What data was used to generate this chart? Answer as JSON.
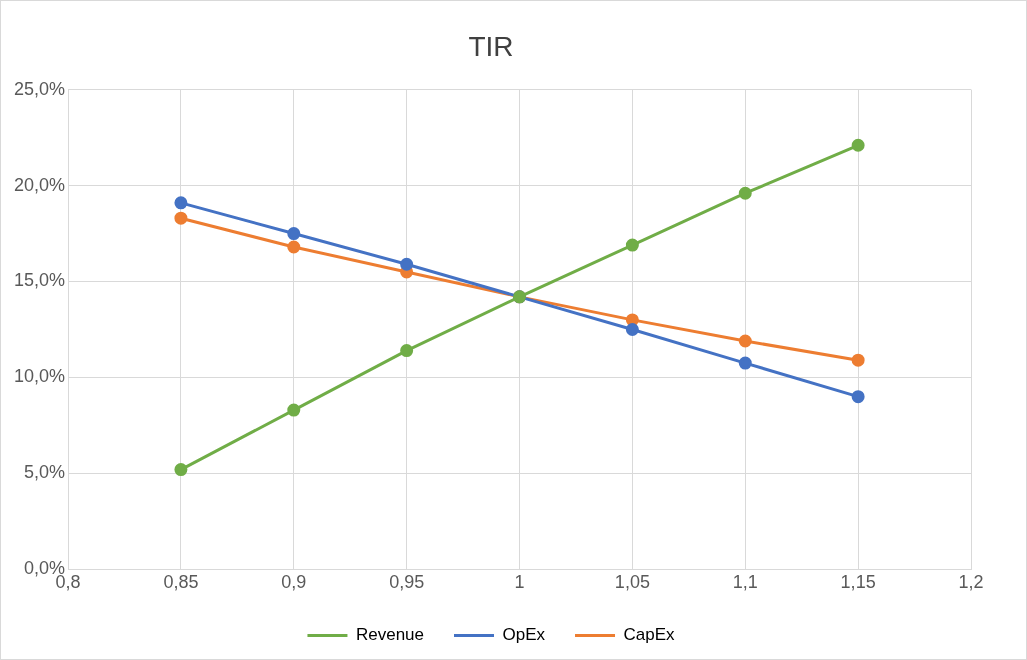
{
  "chart_data": {
    "type": "line",
    "title": "TIR",
    "x": [
      0.85,
      0.9,
      0.95,
      1,
      1.05,
      1.1,
      1.15
    ],
    "series": [
      {
        "name": "Revenue",
        "color": "#70ad47",
        "values": [
          5.2,
          8.3,
          11.4,
          14.2,
          16.9,
          19.6,
          22.1
        ]
      },
      {
        "name": "OpEx",
        "color": "#4472c4",
        "values": [
          19.1,
          17.5,
          15.9,
          14.2,
          12.5,
          10.75,
          9.0
        ]
      },
      {
        "name": "CapEx",
        "color": "#ed7d31",
        "values": [
          18.3,
          16.8,
          15.5,
          14.2,
          13.0,
          11.9,
          10.9
        ]
      }
    ],
    "xlim": [
      0.8,
      1.2
    ],
    "xticks": [
      {
        "value": 0.8,
        "label": "0,8"
      },
      {
        "value": 0.85,
        "label": "0,85"
      },
      {
        "value": 0.9,
        "label": "0,9"
      },
      {
        "value": 0.95,
        "label": "0,95"
      },
      {
        "value": 1,
        "label": "1"
      },
      {
        "value": 1.05,
        "label": "1,05"
      },
      {
        "value": 1.1,
        "label": "1,1"
      },
      {
        "value": 1.15,
        "label": "1,15"
      },
      {
        "value": 1.2,
        "label": "1,2"
      }
    ],
    "ylim": [
      0,
      25
    ],
    "yticks": [
      {
        "value": 0,
        "label": "0,0%"
      },
      {
        "value": 5,
        "label": "5,0%"
      },
      {
        "value": 10,
        "label": "10,0%"
      },
      {
        "value": 15,
        "label": "15,0%"
      },
      {
        "value": 20,
        "label": "20,0%"
      },
      {
        "value": 25,
        "label": "25,0%"
      }
    ],
    "grid": true,
    "legend": "bottom",
    "marker": "circle",
    "line_style": "solid"
  }
}
